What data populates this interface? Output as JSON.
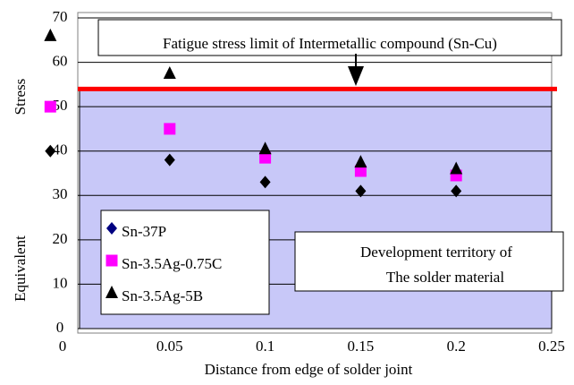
{
  "chart_data": {
    "type": "scatter",
    "ylabel": [
      "Equivalent",
      "Stress"
    ],
    "xlabel": "Distance from edge of solder joint",
    "xlim": [
      0,
      0.25
    ],
    "xticks": [
      0,
      0.05,
      0.1,
      0.15,
      0.2,
      0.25
    ],
    "ylim": [
      0,
      70
    ],
    "yticks": [
      0,
      10,
      20,
      30,
      40,
      50,
      60,
      70
    ],
    "grid": true,
    "legend": "lower left",
    "limit": 54,
    "limit_color": "#ff0000",
    "region_color": "#c8c8f8",
    "annotations": [
      "Fatigue stress limit of Intermetallic compound (Sn-Cu)",
      "Development territory of",
      "The solder material"
    ],
    "series": [
      {
        "name": "Sn-37P",
        "marker": "diamond",
        "color": "#000000",
        "x": [
          -0.0125,
          0.05,
          0.1,
          0.15,
          0.2
        ],
        "values": [
          40,
          38,
          33,
          31,
          31
        ]
      },
      {
        "name": "Sn-3.5Ag-0.75C",
        "marker": "square",
        "color": "#ff00ff",
        "x": [
          -0.0125,
          0.05,
          0.1,
          0.15,
          0.2
        ],
        "values": [
          50,
          45,
          38.5,
          35.5,
          34.5
        ]
      },
      {
        "name": "Sn-3.5Ag-5B",
        "marker": "triangle",
        "color": "#000000",
        "x": [
          -0.0125,
          0.05,
          0.1,
          0.15,
          0.2
        ],
        "values": [
          66,
          57.5,
          40.5,
          37.5,
          36
        ]
      }
    ]
  }
}
